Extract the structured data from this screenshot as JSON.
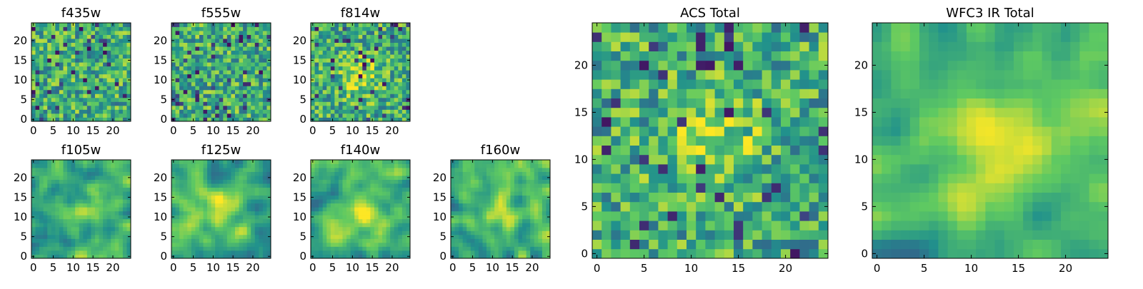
{
  "colormap": "viridis",
  "palette": [
    "#440154",
    "#3b528b",
    "#21918c",
    "#5ec962",
    "#fde725"
  ],
  "chart_data": [
    {
      "type": "heatmap",
      "title": "f435w",
      "rows": 25,
      "cols": 25,
      "xticks": [
        0,
        5,
        10,
        15,
        20
      ],
      "yticks": [
        0,
        5,
        10,
        15,
        20
      ],
      "xlim": [
        0,
        25
      ],
      "ylim": [
        0,
        25
      ],
      "pattern": "noise",
      "seed": 11
    },
    {
      "type": "heatmap",
      "title": "f555w",
      "rows": 25,
      "cols": 25,
      "xticks": [
        0,
        5,
        10,
        15,
        20
      ],
      "yticks": [
        0,
        5,
        10,
        15,
        20
      ],
      "xlim": [
        0,
        25
      ],
      "ylim": [
        0,
        25
      ],
      "pattern": "noise",
      "seed": 23
    },
    {
      "type": "heatmap",
      "title": "f814w",
      "rows": 25,
      "cols": 25,
      "xticks": [
        0,
        5,
        10,
        15,
        20
      ],
      "yticks": [
        0,
        5,
        10,
        15,
        20
      ],
      "xlim": [
        0,
        25
      ],
      "ylim": [
        0,
        25
      ],
      "pattern": "source",
      "source_center": [
        12,
        11
      ],
      "seed": 37
    },
    {
      "type": "heatmap",
      "title": "f105w",
      "rows": 25,
      "cols": 25,
      "xticks": [
        0,
        5,
        10,
        15,
        20
      ],
      "yticks": [
        0,
        5,
        10,
        15,
        20
      ],
      "xlim": [
        0,
        25
      ],
      "ylim": [
        0,
        25
      ],
      "pattern": "smooth-source",
      "source_center": [
        14,
        11
      ],
      "seed": 41
    },
    {
      "type": "heatmap",
      "title": "f125w",
      "rows": 25,
      "cols": 25,
      "xticks": [
        0,
        5,
        10,
        15,
        20
      ],
      "yticks": [
        0,
        5,
        10,
        15,
        20
      ],
      "xlim": [
        0,
        25
      ],
      "ylim": [
        0,
        25
      ],
      "pattern": "smooth-source",
      "source_center": [
        12,
        12
      ],
      "seed": 53
    },
    {
      "type": "heatmap",
      "title": "f140w",
      "rows": 25,
      "cols": 25,
      "xticks": [
        0,
        5,
        10,
        15,
        20
      ],
      "yticks": [
        0,
        5,
        10,
        15,
        20
      ],
      "xlim": [
        0,
        25
      ],
      "ylim": [
        0,
        25
      ],
      "pattern": "smooth-source",
      "source_center": [
        12,
        11
      ],
      "seed": 67
    },
    {
      "type": "heatmap",
      "title": "f160w",
      "rows": 25,
      "cols": 25,
      "xticks": [
        0,
        5,
        10,
        15,
        20
      ],
      "yticks": [
        0,
        5,
        10,
        15,
        20
      ],
      "xlim": [
        0,
        25
      ],
      "ylim": [
        0,
        25
      ],
      "pattern": "smooth-source",
      "source_center": [
        12,
        12
      ],
      "seed": 79
    },
    {
      "type": "heatmap",
      "title": "ACS Total",
      "rows": 25,
      "cols": 25,
      "xticks": [
        0,
        5,
        10,
        15,
        20
      ],
      "yticks": [
        0,
        5,
        10,
        15,
        20
      ],
      "xlim": [
        0,
        25
      ],
      "ylim": [
        0,
        25
      ],
      "pattern": "source",
      "source_center": [
        12,
        12
      ],
      "seed": 83
    },
    {
      "type": "heatmap",
      "title": "WFC3 IR Total",
      "rows": 25,
      "cols": 25,
      "xticks": [
        0,
        5,
        10,
        15,
        20
      ],
      "yticks": [
        0,
        5,
        10,
        15,
        20
      ],
      "xlim": [
        0,
        25
      ],
      "ylim": [
        0,
        25
      ],
      "pattern": "smooth-source",
      "source_center": [
        13,
        12
      ],
      "seed": 97
    }
  ]
}
